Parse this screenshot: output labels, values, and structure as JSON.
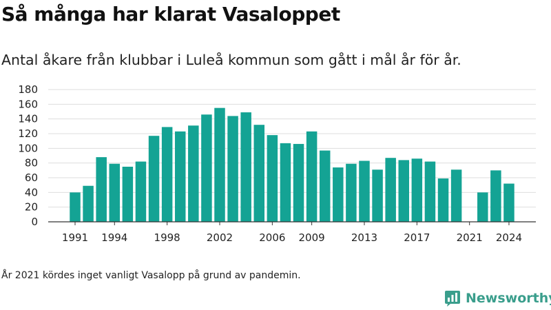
{
  "title": "Så många har klarat Vasaloppet",
  "subtitle": "Antal åkare från klubbar i Luleå kommun som gått i mål år för år.",
  "note": "År 2021 kördes inget vanligt Vasalopp på grund av pandemin.",
  "brand": {
    "name": "Newsworthy",
    "color": "#3a9e8c"
  },
  "chart_data": {
    "type": "bar",
    "title": "",
    "xlabel": "",
    "ylabel": "",
    "bar_color": "#14a394",
    "ylim": [
      0,
      180
    ],
    "yticks": [
      0,
      20,
      40,
      60,
      80,
      100,
      120,
      140,
      160,
      180
    ],
    "xticks": [
      1991,
      1994,
      1998,
      2002,
      2006,
      2009,
      2013,
      2017,
      2021,
      2024
    ],
    "grid": true,
    "categories": [
      1991,
      1992,
      1993,
      1994,
      1995,
      1996,
      1997,
      1998,
      1999,
      2000,
      2001,
      2002,
      2003,
      2004,
      2005,
      2006,
      2007,
      2008,
      2009,
      2010,
      2011,
      2012,
      2013,
      2014,
      2015,
      2016,
      2017,
      2018,
      2019,
      2020,
      2021,
      2022,
      2023,
      2024
    ],
    "values": [
      40,
      49,
      88,
      79,
      75,
      82,
      117,
      129,
      123,
      131,
      146,
      155,
      144,
      149,
      132,
      118,
      107,
      106,
      123,
      97,
      74,
      79,
      83,
      71,
      87,
      84,
      86,
      82,
      59,
      71,
      0,
      40,
      70,
      52
    ]
  }
}
